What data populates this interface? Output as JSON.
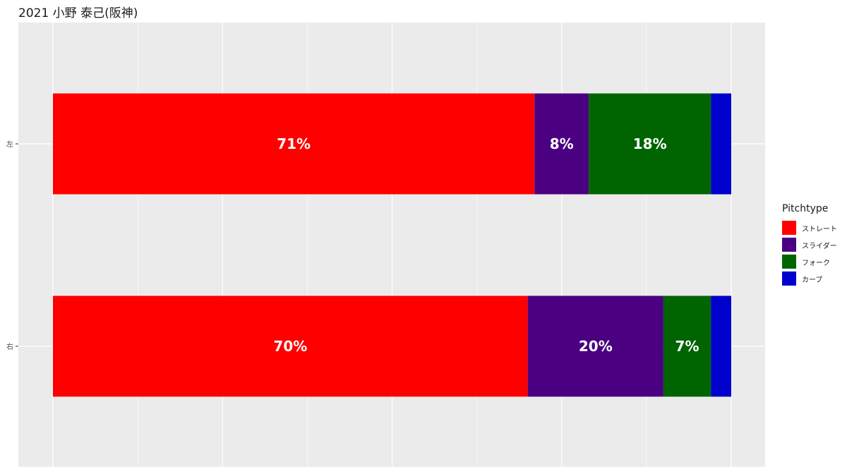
{
  "chart_data": {
    "type": "bar",
    "orientation": "horizontal",
    "stacked": true,
    "normalized": true,
    "title": "2021 小野 泰己(阪神)",
    "xlabel": "",
    "ylabel": "",
    "categories": [
      "左",
      "右"
    ],
    "legend_title": "Pitchtype",
    "legend_position": "right",
    "grid": true,
    "series": [
      {
        "name": "ストレート",
        "color": "#ff0000",
        "values": [
          71,
          70
        ],
        "labels": [
          "71%",
          "70%"
        ]
      },
      {
        "name": "スライダー",
        "color": "#4b0082",
        "values": [
          8,
          20
        ],
        "labels": [
          "8%",
          "20%"
        ]
      },
      {
        "name": "フォーク",
        "color": "#006400",
        "values": [
          18,
          7
        ],
        "labels": [
          "18%",
          "7%"
        ]
      },
      {
        "name": "カーブ",
        "color": "#0000cd",
        "values": [
          3,
          3
        ],
        "labels": [
          "",
          ""
        ]
      }
    ]
  }
}
